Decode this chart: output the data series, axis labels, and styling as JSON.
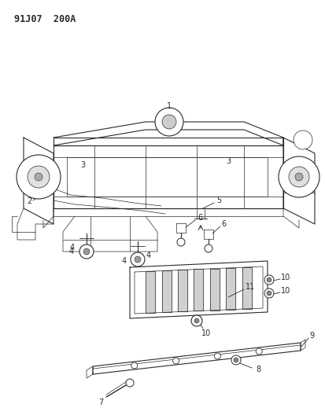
{
  "title": "91J07  200A",
  "bg_color": "#ffffff",
  "lc": "#2a2a2a",
  "title_fs": 8.5,
  "label_fs": 7,
  "fig_w": 4.14,
  "fig_h": 5.33,
  "dpi": 100
}
